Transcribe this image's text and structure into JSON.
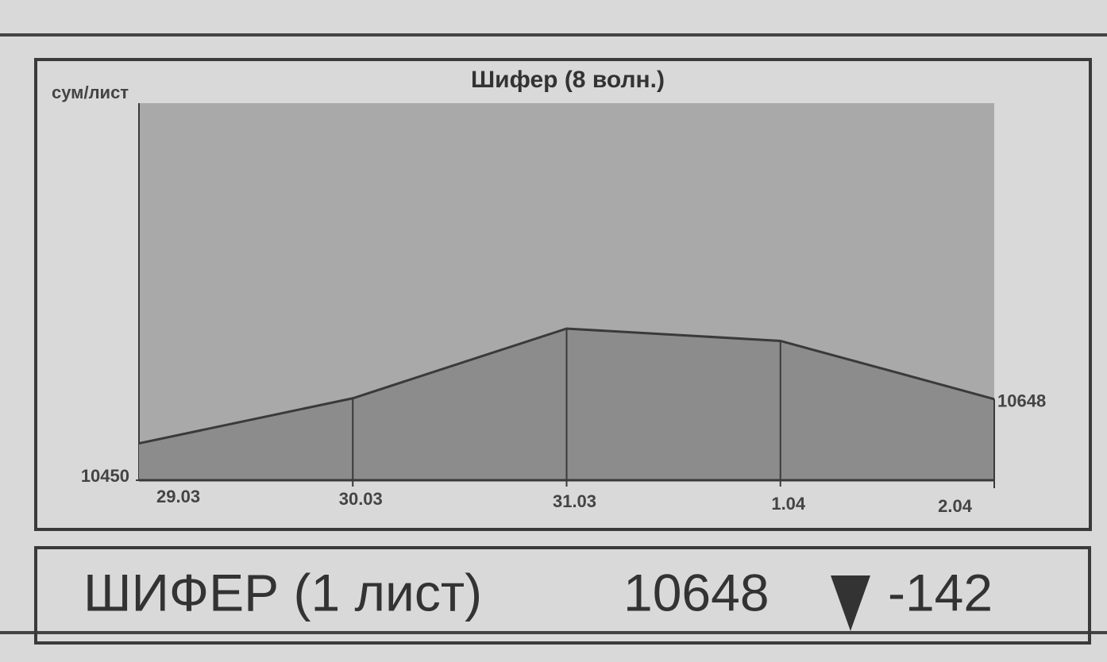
{
  "chart_data": {
    "type": "area",
    "title": "Шифер (8 волн.)",
    "y_label": "сум/лист",
    "categories": [
      "29.03",
      "30.03",
      "31.03",
      "1.04",
      "2.04"
    ],
    "values": [
      10540,
      10650,
      10820,
      10790,
      10648
    ],
    "color": "#8c8c8c",
    "plot_color": "#a9a9a9",
    "line_color": "#3a3a3a",
    "ylim": [
      10450,
      11370
    ],
    "yticks": [
      10450
    ],
    "value_label_index": 4,
    "drop_lines": true
  },
  "caption": {
    "label": "ШИФЕР (1 лист)",
    "price": "10648",
    "change": "-142"
  }
}
